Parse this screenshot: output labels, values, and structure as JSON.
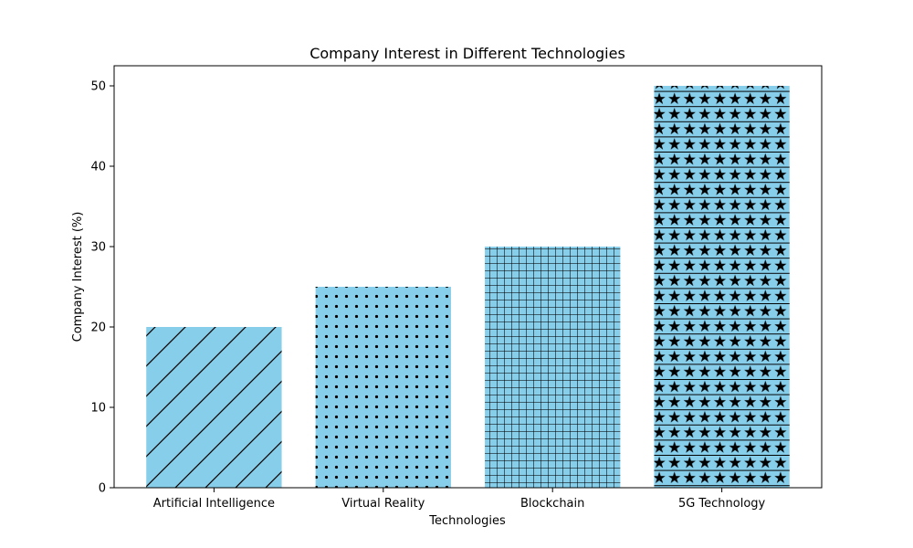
{
  "chart_data": {
    "type": "bar",
    "title": "Company Interest in Different Technologies",
    "xlabel": "Technologies",
    "ylabel": "Company Interest (%)",
    "categories": [
      "Artificial Intelligence",
      "Virtual Reality",
      "Blockchain",
      "5G Technology"
    ],
    "values": [
      20,
      25,
      30,
      50
    ],
    "ylim": [
      0,
      52.5
    ],
    "yticks": [
      0,
      10,
      20,
      30,
      40,
      50
    ],
    "bar_color": "#87ceeb",
    "hatches": [
      "diagonal",
      "dots",
      "grid",
      "stars"
    ],
    "grid": false,
    "legend": "none"
  }
}
